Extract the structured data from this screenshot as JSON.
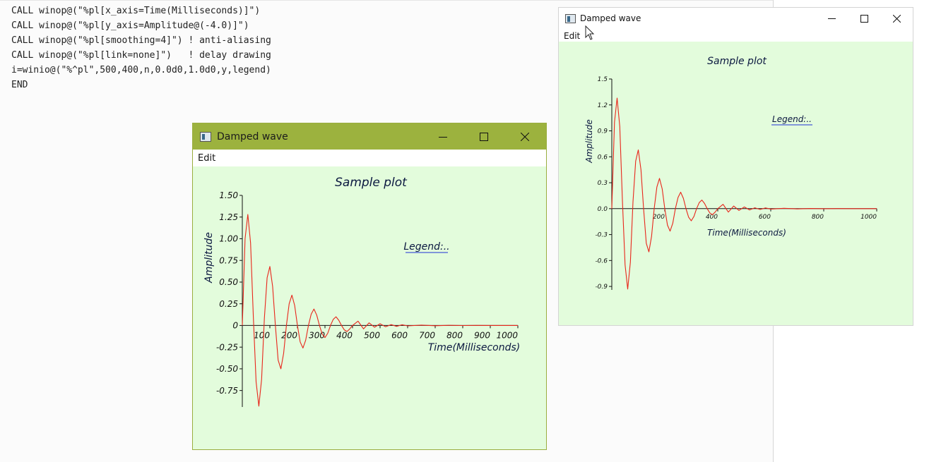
{
  "editor": {
    "code_lines": [
      "CALL winop@(\"%pl[x_axis=Time(Milliseconds)]\")",
      "CALL winop@(\"%pl[y_axis=Amplitude@(-4.0)]\")",
      "CALL winop@(\"%pl[smoothing=4]\") ! anti-aliasing",
      "CALL winop@(\"%pl[link=none]\")   ! delay drawing",
      "i=winio@(\"%^pl\",500,400,n,0.0d0,1.0d0,y,legend)",
      "END"
    ]
  },
  "colors": {
    "active_titlebar": "#9cb23e",
    "plot_background": "#e3fcdc",
    "curve": "#e8261b",
    "legend_underline": "#1f2fd6",
    "title_text": "#0b1840"
  },
  "windows": [
    {
      "id": "win1",
      "state": "active",
      "title": "Damped wave",
      "menu": [
        "Edit"
      ],
      "icons": {
        "app": "app-window-icon",
        "minimize": "minimize-icon",
        "maximize": "maximize-icon",
        "close": "close-icon"
      },
      "plot": {
        "title": "Sample plot",
        "xlabel": "Time(Milliseconds)",
        "ylabel": "Amplitude",
        "legend": "Legend:..",
        "x_ticks": [
          "100",
          "200",
          "300",
          "400",
          "500",
          "600",
          "700",
          "800",
          "900",
          "1000"
        ],
        "y_ticks": [
          "1.50",
          "1.25",
          "1.00",
          "0.75",
          "0.50",
          "0.25",
          "0",
          "-0.25",
          "-0.50",
          "-0.75"
        ]
      }
    },
    {
      "id": "win2",
      "state": "inactive",
      "title": "Damped wave",
      "menu": [
        "Edit"
      ],
      "icons": {
        "app": "app-window-icon",
        "minimize": "minimize-icon",
        "maximize": "maximize-icon",
        "close": "close-icon"
      },
      "plot": {
        "title": "Sample plot",
        "xlabel": "Time(Milliseconds)",
        "ylabel": "Amplitude",
        "legend": "Legend:..",
        "x_ticks": [
          "200",
          "400",
          "600",
          "800",
          "1000"
        ],
        "y_ticks": [
          "1.5",
          "1.2",
          "0.9",
          "0.6",
          "0.3",
          "0.0",
          "-0.3",
          "-0.6",
          "-0.9"
        ]
      }
    }
  ],
  "chart_data": [
    {
      "type": "line",
      "title": "Sample plot",
      "xlabel": "Time(Milliseconds)",
      "ylabel": "Amplitude",
      "xlim": [
        0,
        1000
      ],
      "ylim": [
        -0.94,
        1.5
      ],
      "x_ticks": [
        100,
        200,
        300,
        400,
        500,
        600,
        700,
        800,
        900,
        1000
      ],
      "y_ticks": [
        1.5,
        1.25,
        1.0,
        0.75,
        0.5,
        0.25,
        0,
        -0.25,
        -0.5,
        -0.75
      ],
      "grid": false,
      "legend": "top-right",
      "series": [
        {
          "x": [
            0,
            10,
            20,
            30,
            40,
            50,
            60,
            70,
            80,
            90,
            100,
            110,
            120,
            130,
            140,
            150,
            160,
            170,
            180,
            190,
            200,
            210,
            220,
            230,
            240,
            250,
            260,
            270,
            280,
            290,
            300,
            310,
            320,
            330,
            340,
            350,
            360,
            370,
            380,
            390,
            400,
            420,
            440,
            460,
            480,
            500,
            520,
            540,
            560,
            580,
            600,
            650,
            700,
            750,
            800,
            850,
            900,
            950,
            1000
          ],
          "y": [
            0,
            1.0,
            1.28,
            0.95,
            0.1,
            -0.65,
            -0.93,
            -0.62,
            0.08,
            0.55,
            0.68,
            0.45,
            0.0,
            -0.4,
            -0.5,
            -0.32,
            0.0,
            0.25,
            0.35,
            0.23,
            0.0,
            -0.19,
            -0.26,
            -0.17,
            0.0,
            0.13,
            0.19,
            0.12,
            0.0,
            -0.1,
            -0.14,
            -0.09,
            0.0,
            0.07,
            0.1,
            0.06,
            0.0,
            -0.05,
            -0.07,
            -0.04,
            0.0,
            0.05,
            -0.04,
            0.03,
            -0.02,
            0.02,
            -0.015,
            0.01,
            -0.01,
            0.008,
            -0.005,
            0.004,
            -0.003,
            0.002,
            -0.001,
            0.001,
            0,
            0,
            0
          ]
        }
      ]
    },
    {
      "type": "line",
      "title": "Sample plot",
      "xlabel": "Time(Milliseconds)",
      "ylabel": "Amplitude",
      "xlim": [
        0,
        1000
      ],
      "ylim": [
        -0.94,
        1.5
      ],
      "x_ticks": [
        200,
        400,
        600,
        800,
        1000
      ],
      "y_ticks": [
        1.5,
        1.2,
        0.9,
        0.6,
        0.3,
        0.0,
        -0.3,
        -0.6,
        -0.9
      ],
      "grid": false,
      "legend": "top-right",
      "series": [
        {
          "x": [
            0,
            10,
            20,
            30,
            40,
            50,
            60,
            70,
            80,
            90,
            100,
            110,
            120,
            130,
            140,
            150,
            160,
            170,
            180,
            190,
            200,
            210,
            220,
            230,
            240,
            250,
            260,
            270,
            280,
            290,
            300,
            310,
            320,
            330,
            340,
            350,
            360,
            370,
            380,
            390,
            400,
            420,
            440,
            460,
            480,
            500,
            520,
            540,
            560,
            580,
            600,
            650,
            700,
            750,
            800,
            850,
            900,
            950,
            1000
          ],
          "y": [
            0,
            1.0,
            1.28,
            0.95,
            0.1,
            -0.65,
            -0.93,
            -0.62,
            0.08,
            0.55,
            0.68,
            0.45,
            0.0,
            -0.4,
            -0.5,
            -0.32,
            0.0,
            0.25,
            0.35,
            0.23,
            0.0,
            -0.19,
            -0.26,
            -0.17,
            0.0,
            0.13,
            0.19,
            0.12,
            0.0,
            -0.1,
            -0.14,
            -0.09,
            0.0,
            0.07,
            0.1,
            0.06,
            0.0,
            -0.05,
            -0.07,
            -0.04,
            0.0,
            0.05,
            -0.04,
            0.03,
            -0.02,
            0.02,
            -0.015,
            0.01,
            -0.01,
            0.008,
            -0.005,
            0.004,
            -0.003,
            0.002,
            -0.001,
            0.001,
            0,
            0,
            0
          ]
        }
      ]
    }
  ]
}
